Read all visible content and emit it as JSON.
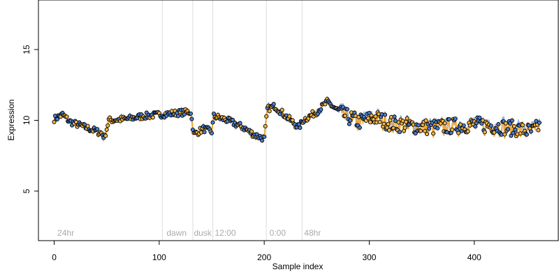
{
  "chart_data": {
    "type": "line",
    "title": "",
    "xlabel": "Sample index",
    "ylabel": "Expression",
    "xlim": [
      -15,
      480
    ],
    "ylim": [
      1.5,
      18.5
    ],
    "xticks": [
      0,
      100,
      200,
      300,
      400
    ],
    "yticks": [
      5,
      10,
      15
    ],
    "grid": false,
    "legend": "none",
    "colors": {
      "point_fill_orange": "#f5b342",
      "point_fill_blue": "#4a7fd0",
      "line_orange": "#f2a93b",
      "line_blue": "#8aaee0",
      "point_stroke": "#000000",
      "divider": "#dddddd",
      "segment_label": "#aaaaaa"
    },
    "n_points": 463,
    "segment_boundaries": [
      103,
      132,
      151,
      202,
      236
    ],
    "segment_labels": [
      {
        "label": "24hr",
        "x": 3
      },
      {
        "label": "dawn",
        "x": 107
      },
      {
        "label": "dusk",
        "x": 133
      },
      {
        "label": "12:00",
        "x": 153
      },
      {
        "label": "0:00",
        "x": 205
      },
      {
        "label": "48hr",
        "x": 238
      }
    ],
    "series_profile": [
      {
        "x": 0,
        "y": 10.1
      },
      {
        "x": 8,
        "y": 10.4
      },
      {
        "x": 15,
        "y": 9.9
      },
      {
        "x": 30,
        "y": 9.5
      },
      {
        "x": 45,
        "y": 9.1
      },
      {
        "x": 48,
        "y": 8.8
      },
      {
        "x": 52,
        "y": 10.0
      },
      {
        "x": 70,
        "y": 10.1
      },
      {
        "x": 85,
        "y": 10.3
      },
      {
        "x": 100,
        "y": 10.4
      },
      {
        "x": 115,
        "y": 10.5
      },
      {
        "x": 130,
        "y": 10.6
      },
      {
        "x": 133,
        "y": 9.0
      },
      {
        "x": 142,
        "y": 9.4
      },
      {
        "x": 150,
        "y": 9.2
      },
      {
        "x": 152,
        "y": 10.3
      },
      {
        "x": 165,
        "y": 10.0
      },
      {
        "x": 180,
        "y": 9.5
      },
      {
        "x": 190,
        "y": 9.0
      },
      {
        "x": 200,
        "y": 8.7
      },
      {
        "x": 203,
        "y": 10.8
      },
      {
        "x": 210,
        "y": 11.0
      },
      {
        "x": 222,
        "y": 10.2
      },
      {
        "x": 233,
        "y": 9.5
      },
      {
        "x": 237,
        "y": 10.0
      },
      {
        "x": 250,
        "y": 10.6
      },
      {
        "x": 260,
        "y": 11.3
      },
      {
        "x": 275,
        "y": 10.4
      },
      {
        "x": 290,
        "y": 9.9
      },
      {
        "x": 305,
        "y": 10.2
      },
      {
        "x": 320,
        "y": 9.8
      },
      {
        "x": 340,
        "y": 9.6
      },
      {
        "x": 360,
        "y": 9.5
      },
      {
        "x": 380,
        "y": 9.6
      },
      {
        "x": 400,
        "y": 9.7
      },
      {
        "x": 420,
        "y": 9.6
      },
      {
        "x": 440,
        "y": 9.4
      },
      {
        "x": 455,
        "y": 9.2
      },
      {
        "x": 462,
        "y": 9.6
      }
    ]
  }
}
